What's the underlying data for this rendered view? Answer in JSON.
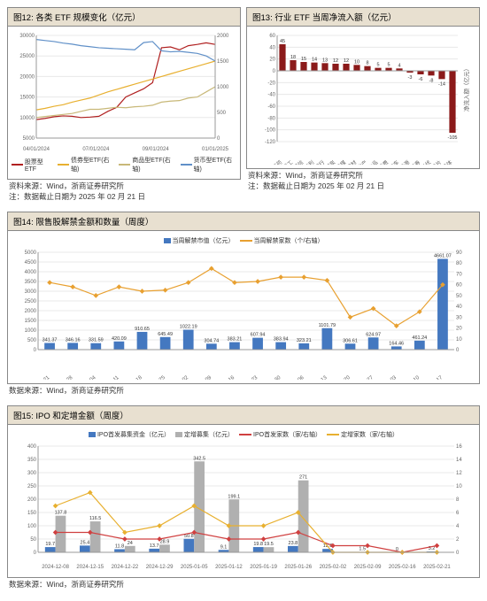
{
  "fig12": {
    "title": "图12:    各类 ETF 规模变化（亿元）",
    "source": "资料来源：Wind，浙商证券研究所",
    "note": "注：数据截止日期为 2025 年 02 月 21 日",
    "type": "line",
    "x_labels": [
      "04/01/2024",
      "07/01/2024",
      "09/01/2024",
      "01/01/2025"
    ],
    "left_ylim": [
      5000,
      30000
    ],
    "left_ticks": [
      5000,
      10000,
      15000,
      20000,
      25000,
      30000
    ],
    "right_ylim": [
      0,
      2000
    ],
    "right_ticks": [
      0,
      500,
      1000,
      1500,
      2000
    ],
    "series": [
      {
        "name": "股票型ETF",
        "color": "#b02020",
        "axis": "left",
        "values": [
          9500,
          9800,
          10200,
          10400,
          10300,
          10000,
          10100,
          10300,
          11500,
          12500,
          15000,
          16000,
          17000,
          18500,
          27000,
          27200,
          26500,
          27500,
          27800,
          28200,
          27800
        ]
      },
      {
        "name": "债券型ETF(右轴)",
        "color": "#e8b030",
        "axis": "right",
        "values": [
          550,
          580,
          620,
          650,
          700,
          740,
          780,
          840,
          900,
          950,
          1000,
          1050,
          1100,
          1150,
          1200,
          1250,
          1300,
          1350,
          1400,
          1450,
          1500
        ]
      },
      {
        "name": "商品型ETF(右轴)",
        "color": "#c8b878",
        "axis": "right",
        "values": [
          400,
          420,
          440,
          460,
          480,
          520,
          560,
          560,
          580,
          600,
          590,
          610,
          620,
          640,
          700,
          720,
          730,
          780,
          800,
          900,
          1000
        ]
      },
      {
        "name": "货币型ETF(右轴)",
        "color": "#6090c8",
        "axis": "right",
        "values": [
          1920,
          1900,
          1880,
          1850,
          1830,
          1800,
          1780,
          1760,
          1750,
          1740,
          1730,
          1720,
          1860,
          1880,
          1700,
          1680,
          1690,
          1670,
          1650,
          1600,
          1500
        ]
      }
    ],
    "legend": [
      "股票型ETF",
      "债券型ETF(右轴)",
      "商品型ETF(右轴)",
      "货币型ETF(右轴)"
    ],
    "grid_color": "#e8e8e8",
    "axis_color": "#999"
  },
  "fig13": {
    "title": "图13:    行业 ETF 当周净流入额（亿元）",
    "source": "资料来源：Wind，浙商证券研究所",
    "note": "注：数据截止日期为 2025 年 02 月 21 日",
    "type": "bar",
    "ylabel": "净流入额（亿元）",
    "ylim": [
      -120,
      60
    ],
    "yticks": [
      -120,
      -100,
      -80,
      -60,
      -40,
      -20,
      0,
      20,
      40,
      60
    ],
    "bar_color": "#8b1a1a",
    "grid_color": "#e8e8e8",
    "axis_color": "#999",
    "data": [
      {
        "cat": "医药",
        "val": 45
      },
      {
        "cat": "军工",
        "val": 18
      },
      {
        "cat": "通信",
        "val": 15
      },
      {
        "cat": "红利",
        "val": 14
      },
      {
        "cat": "银行",
        "val": 13
      },
      {
        "cat": "煤炭",
        "val": 12
      },
      {
        "cat": "传媒",
        "val": 12
      },
      {
        "cat": "建材",
        "val": 10
      },
      {
        "cat": "地产",
        "val": 8
      },
      {
        "cat": "食品",
        "val": 5
      },
      {
        "cat": "消费",
        "val": 5
      },
      {
        "cat": "汽车",
        "val": 4
      },
      {
        "cat": "新能源",
        "val": -3
      },
      {
        "cat": "证券",
        "val": -6
      },
      {
        "cat": "光伏",
        "val": -8
      },
      {
        "cat": "芯片",
        "val": -14
      },
      {
        "cat": "半导体",
        "val": -105
      }
    ]
  },
  "fig14": {
    "title": "图14:    限售股解禁金额和数量（周度）",
    "source": "数据来源：Wind，浙商证券研究所",
    "type": "combo",
    "legend": [
      "当周解禁市值（亿元）",
      "当周解禁家数（个/右轴）"
    ],
    "left_ylim": [
      0,
      5000
    ],
    "left_ticks": [
      0,
      500,
      1000,
      1500,
      2000,
      2500,
      3000,
      3500,
      4000,
      4500,
      5000
    ],
    "right_ylim": [
      0,
      90
    ],
    "right_ticks": [
      0,
      10,
      20,
      30,
      40,
      50,
      60,
      70,
      80,
      90
    ],
    "bar_color": "#4478c0",
    "line_color": "#e8a030",
    "grid_color": "#e8e8e8",
    "axis_color": "#999",
    "categories": [
      "2024-10-21",
      "2024-10-28",
      "2024-11-04",
      "2024-11-11",
      "2024-11-18",
      "2024-11-25",
      "2024-12-02",
      "2024-12-09",
      "2024-12-16",
      "2024-12-23",
      "2024-12-30",
      "2025-01-06",
      "2025-01-13",
      "2025-01-20",
      "2025-01-27",
      "2025-02-03",
      "2025-02-10",
      "2025-02-17"
    ],
    "bars": [
      341.37,
      346.16,
      331.59,
      420.09,
      910.65,
      645.49,
      1022.19,
      304.74,
      383.21,
      607.94,
      383.94,
      323.21,
      1101.79,
      306.61,
      624.97,
      164.46,
      461.24,
      4661.07
    ],
    "line": [
      62,
      58,
      50,
      58,
      54,
      55,
      62,
      75,
      62,
      63,
      67,
      67,
      64,
      30,
      38,
      22,
      35,
      60
    ]
  },
  "fig15": {
    "title": "图15:    IPO 和定增金额（周度）",
    "source": "数据来源：Wind，浙商证券研究所",
    "type": "combo",
    "legend": [
      "IPO首发募集资金（亿元）",
      "定增募集（亿元）",
      "IPO首发家数（家/右轴）",
      "定增家数（家/右轴）"
    ],
    "left_ylim": [
      0,
      400
    ],
    "left_ticks": [
      0,
      50,
      100,
      150,
      200,
      250,
      300,
      350,
      400
    ],
    "right_ylim": [
      0,
      16
    ],
    "right_ticks": [
      0,
      2,
      4,
      6,
      8,
      10,
      12,
      14,
      16
    ],
    "bar1_color": "#4478c0",
    "bar2_color": "#b0b0b0",
    "line1_color": "#d04040",
    "line2_color": "#e8b030",
    "grid_color": "#e8e8e8",
    "axis_color": "#999",
    "categories": [
      "2024-12-08",
      "2024-12-15",
      "2024-12-22",
      "2024-12-29",
      "2025-01-05",
      "2025-01-12",
      "2025-01-19",
      "2025-01-26",
      "2025-02-02",
      "2025-02-09",
      "2025-02-16",
      "2025-02-21"
    ],
    "bars1": [
      19.7,
      25.4,
      11.8,
      13.7,
      50.8,
      9.1,
      19.8,
      23.8,
      12.8,
      1.5,
      0.0,
      3.2
    ],
    "bars2": [
      137.8,
      116.5,
      24.0,
      28.9,
      342.5,
      199.1,
      19.5,
      271.0,
      0.0,
      0.0,
      0.0,
      0.0
    ],
    "line1": [
      3,
      3,
      2,
      2,
      3,
      2,
      2,
      3,
      1,
      1,
      0,
      1
    ],
    "line2": [
      7,
      9,
      3,
      4,
      7,
      4,
      4,
      6,
      0,
      0,
      0,
      0
    ]
  }
}
